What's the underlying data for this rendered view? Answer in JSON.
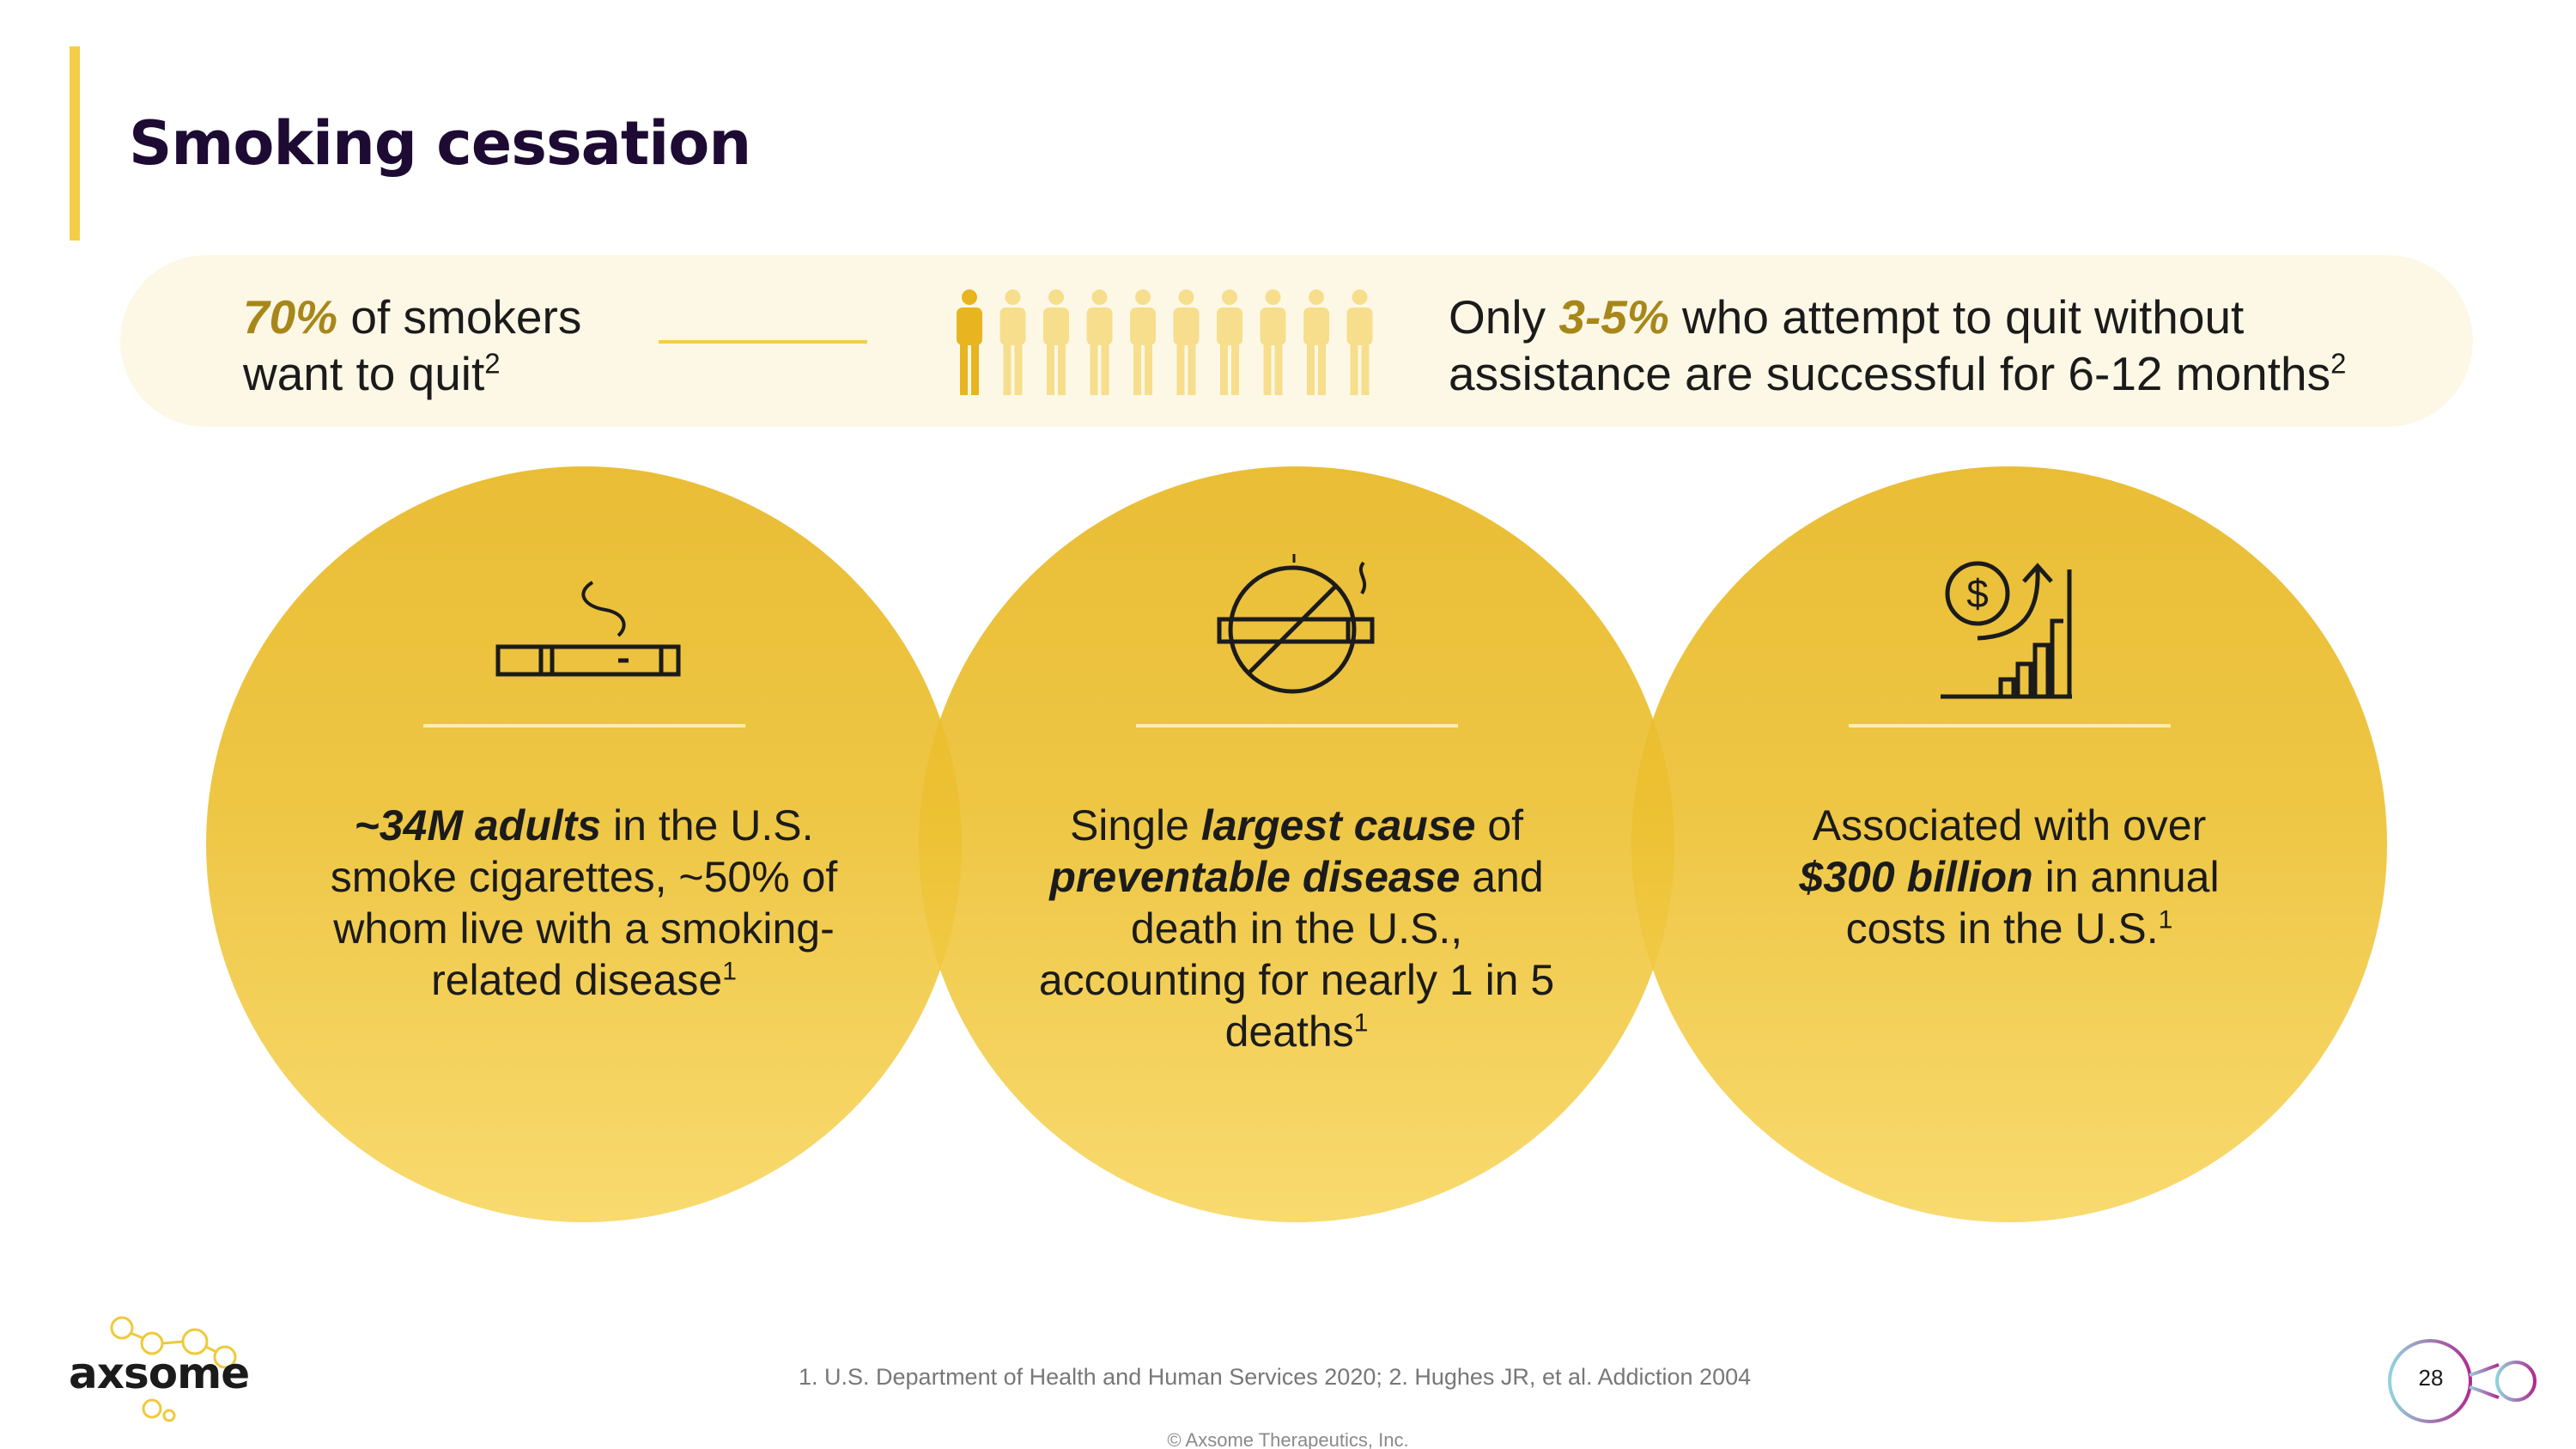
{
  "title": "Smoking cessation",
  "banner": {
    "left": {
      "highlight": "70%",
      "text_1": " of smokers",
      "text_2": "want to quit",
      "sup": "2"
    },
    "right": {
      "prefix": "Only ",
      "highlight": "3-5%",
      "text_1": " who attempt to quit without",
      "text_2": "assistance are successful for 6-12 months",
      "sup": "2"
    },
    "people_icon": "people-row-icon"
  },
  "circles": [
    {
      "icon": "cigarette-icon",
      "bold": "~34M adults",
      "text_a": " in the U.S.",
      "text_b": "smoke cigarettes, ~50% of",
      "text_c": "whom live with a smoking-",
      "text_d": "related disease",
      "sup": "1"
    },
    {
      "icon": "no-smoking-icon",
      "text_a": "Single ",
      "bold_1": "largest cause",
      "text_b": " of",
      "bold_2": "preventable disease",
      "text_c": " and",
      "text_d": "death in the U.S.,",
      "text_e": "accounting for nearly 1 in 5",
      "text_f": "deaths",
      "sup": "1"
    },
    {
      "icon": "money-growth-icon",
      "text_a": "Associated with over",
      "bold": "$300 billion",
      "text_b": " in annual",
      "text_c": "costs in the U.S.",
      "sup": "1"
    }
  ],
  "footer": {
    "logo": "axsome",
    "footnote": "1. U.S. Department of Health and Human Services 2020; 2. Hughes JR, et al. Addiction 2004",
    "copyright": "© Axsome Therapeutics, Inc.",
    "page_number": "28"
  },
  "colors": {
    "accent": "#f5cd47",
    "highlight": "#a8871a",
    "circle": "#ecc030",
    "title": "#1d0b34"
  }
}
